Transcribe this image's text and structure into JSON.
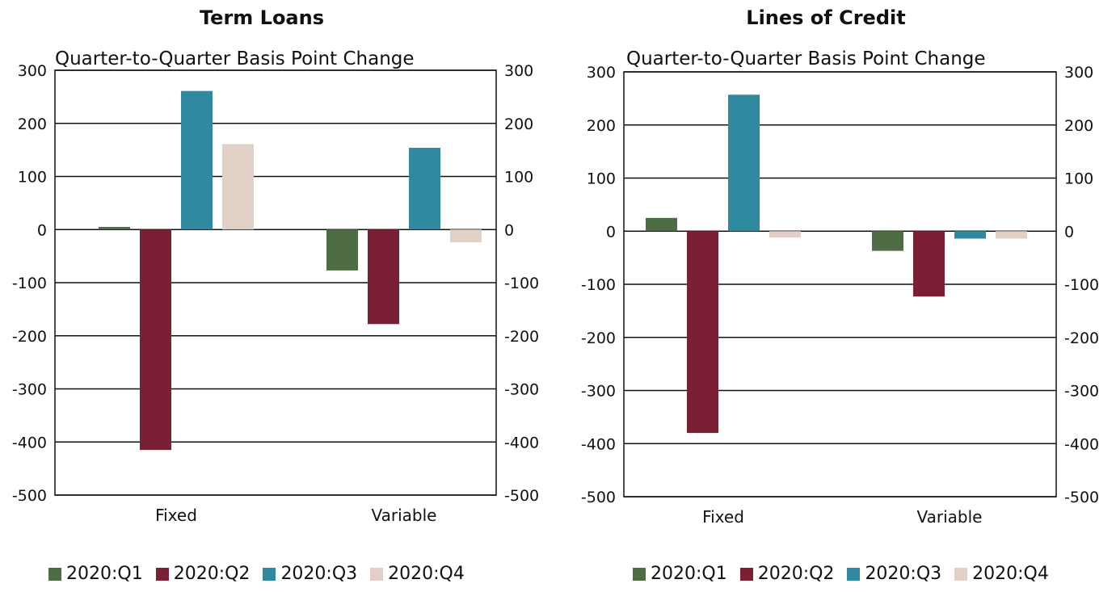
{
  "chart_data": [
    {
      "type": "bar",
      "title": "Term Loans",
      "subtitle": "Quarter-to-Quarter Basis Point Change",
      "categories": [
        "Fixed",
        "Variable"
      ],
      "series": [
        {
          "name": "2020:Q1",
          "values": [
            5,
            -77
          ]
        },
        {
          "name": "2020:Q2",
          "values": [
            -415,
            -178
          ]
        },
        {
          "name": "2020:Q3",
          "values": [
            261,
            154
          ]
        },
        {
          "name": "2020:Q4",
          "values": [
            161,
            -24
          ]
        }
      ],
      "ylim": [
        -500,
        300
      ],
      "y_ticks": [
        300,
        200,
        100,
        0,
        -100,
        -200,
        -300,
        -400,
        -500
      ],
      "y_tick_labels": [
        "300",
        "200",
        "100",
        "0",
        "-100",
        "-200",
        "-300",
        "-400",
        "-500"
      ],
      "grid": true,
      "legend_position": "bottom",
      "dual_y_axis": true
    },
    {
      "type": "bar",
      "title": "Lines of Credit",
      "subtitle": "Quarter-to-Quarter Basis Point Change",
      "categories": [
        "Fixed",
        "Variable"
      ],
      "series": [
        {
          "name": "2020:Q1",
          "values": [
            25,
            -37
          ]
        },
        {
          "name": "2020:Q2",
          "values": [
            -380,
            -123
          ]
        },
        {
          "name": "2020:Q3",
          "values": [
            257,
            -14
          ]
        },
        {
          "name": "2020:Q4",
          "values": [
            -12,
            -14
          ]
        }
      ],
      "ylim": [
        -500,
        300
      ],
      "y_ticks": [
        300,
        200,
        100,
        0,
        -100,
        -200,
        -300,
        -400,
        -500
      ],
      "y_tick_labels": [
        "300",
        "200",
        "100",
        "0",
        "-100",
        "-200",
        "-300",
        "-400",
        "-500"
      ],
      "grid": true,
      "legend_position": "bottom",
      "dual_y_axis": true
    }
  ],
  "colors": {
    "2020:Q1": "#4f6d45",
    "2020:Q2": "#7a1f34",
    "2020:Q3": "#2f8a9f",
    "2020:Q4": "#e0d0c6",
    "axis": "#111111",
    "grid": "#111111"
  },
  "legends": [
    {
      "items": [
        "2020:Q1",
        "2020:Q2",
        "2020:Q3",
        "2020:Q4"
      ]
    },
    {
      "items": [
        "2020:Q1",
        "2020:Q2",
        "2020:Q3",
        "2020:Q4"
      ]
    }
  ]
}
